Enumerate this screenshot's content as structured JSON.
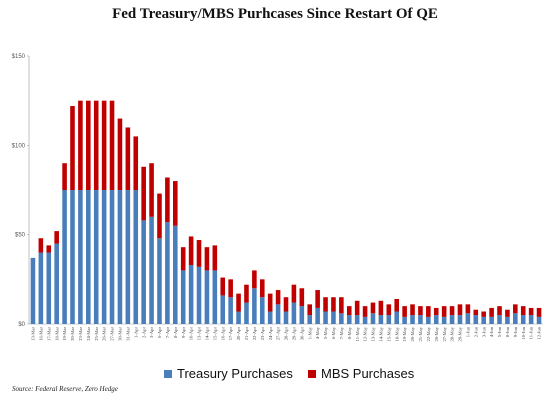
{
  "chart_data": {
    "type": "bar",
    "stacked": true,
    "title": "Fed Treasury/MBS Purhcases Since Restart Of QE",
    "xlabel": "",
    "ylabel": "",
    "ylim": [
      0,
      150
    ],
    "yticks": [
      "$0",
      "$50",
      "$100",
      "$150"
    ],
    "grid": false,
    "legend_position": "bottom",
    "categories": [
      "13-Mar",
      "16-Mar",
      "17-Mar",
      "18-Mar",
      "19-Mar",
      "20-Mar",
      "23-Mar",
      "24-Mar",
      "25-Mar",
      "26-Mar",
      "27-Mar",
      "30-Mar",
      "31-Mar",
      "1-Apr",
      "2-Apr",
      "3-Apr",
      "6-Apr",
      "7-Apr",
      "8-Apr",
      "9-Apr",
      "10-Apr",
      "13-Apr",
      "14-Apr",
      "15-Apr",
      "16-Apr",
      "17-Apr",
      "20-Apr",
      "21-Apr",
      "22-Apr",
      "23-Apr",
      "24-Apr",
      "27-Apr",
      "28-Apr",
      "29-Apr",
      "30-Apr",
      "1-May",
      "4-May",
      "5-May",
      "6-May",
      "7-May",
      "8-May",
      "11-May",
      "12-May",
      "13-May",
      "14-May",
      "15-May",
      "18-May",
      "19-May",
      "20-May",
      "21-May",
      "22-May",
      "26-May",
      "27-May",
      "28-May",
      "29-May",
      "1-Jun",
      "2-Jun",
      "3-Jun",
      "4-Jun",
      "5-Jun",
      "8-Jun",
      "9-Jun",
      "10-Jun",
      "11-Jun",
      "12-Jun"
    ],
    "series": [
      {
        "name": "Treasury Purchases",
        "color": "#4a7ebb",
        "values": [
          37,
          40,
          40,
          45,
          75,
          75,
          75,
          75,
          75,
          75,
          75,
          75,
          75,
          75,
          58,
          60,
          48,
          57,
          55,
          30,
          33,
          32,
          30,
          30,
          16,
          15,
          7,
          12,
          20,
          15,
          7,
          11,
          7,
          12,
          10,
          5,
          9,
          7,
          7,
          6,
          5,
          5,
          4,
          6,
          5,
          5,
          7,
          4,
          5,
          5,
          4,
          5,
          4,
          5,
          5,
          6,
          5,
          4,
          4,
          5,
          4,
          6,
          5,
          5,
          4
        ]
      },
      {
        "name": "MBS Purchases",
        "color": "#c00000",
        "values": [
          0,
          8,
          4,
          7,
          15,
          47,
          50,
          50,
          50,
          50,
          50,
          40,
          35,
          30,
          30,
          30,
          25,
          25,
          25,
          13,
          16,
          15,
          13,
          14,
          10,
          10,
          10,
          10,
          10,
          10,
          10,
          8,
          8,
          10,
          10,
          6,
          10,
          8,
          8,
          9,
          5,
          8,
          6,
          6,
          8,
          6,
          7,
          6,
          6,
          5,
          6,
          4,
          6,
          5,
          6,
          5,
          3,
          3,
          5,
          5,
          4,
          5,
          5,
          4,
          5
        ]
      }
    ]
  },
  "legend": {
    "treasury_label": "Treasury Purchases",
    "mbs_label": "MBS Purchases"
  },
  "source_note": "Source: Federal Reserve, Zero Hedge"
}
